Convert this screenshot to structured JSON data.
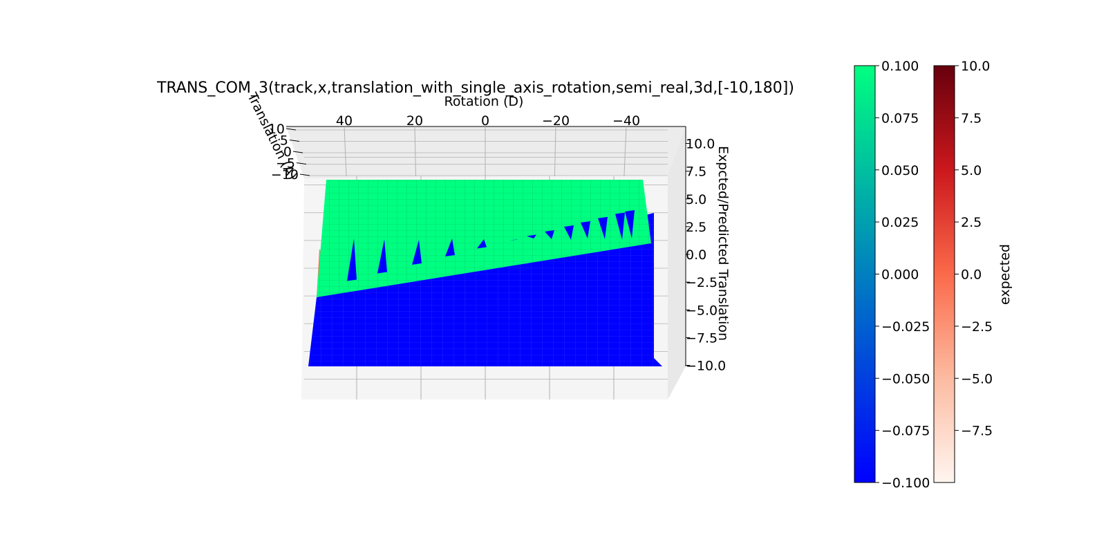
{
  "chart_data": {
    "type": "surface3d",
    "title": "TRANS_COM_3(track,x,translation_with_single_axis_rotation,semi_real,3d,[-10,180])",
    "x_axis": {
      "label": "Rotation (D)",
      "ticks": [
        "40",
        "20",
        "0",
        "−20",
        "−40"
      ],
      "range": [
        50,
        -50
      ]
    },
    "y_axis": {
      "label": "Translation (A)",
      "ticks": [
        "10",
        "5",
        "0",
        "−5",
        "−10"
      ],
      "range": [
        10,
        -10
      ]
    },
    "z_axis": {
      "label": "Expcted/Predicted Translation",
      "ticks": [
        "10.0",
        "7.5",
        "5.0",
        "2.5",
        "0.0",
        "−2.5",
        "−5.0",
        "−7.5",
        "−10.0"
      ],
      "range": [
        -10,
        10
      ]
    },
    "series": [
      {
        "name": "predicted",
        "surface": "piecewise plane: approximately +10 for positive translation, −10 for negative translation",
        "colormap": "winter"
      },
      {
        "name": "expected",
        "surface": "plane increasing with translation from −10 to 10",
        "colormap": "Reds"
      }
    ],
    "colorbars": [
      {
        "label": "predicted",
        "colormap": "winter",
        "min": -0.1,
        "max": 0.1,
        "ticks": [
          "0.100",
          "0.075",
          "0.050",
          "0.025",
          "0.000",
          "−0.025",
          "−0.050",
          "−0.075",
          "−0.100"
        ]
      },
      {
        "label": "expected",
        "colormap": "Reds",
        "min": -10,
        "max": 10,
        "ticks": [
          "10.0",
          "7.5",
          "5.0",
          "2.5",
          "0.0",
          "−2.5",
          "−5.0",
          "−7.5"
        ]
      }
    ],
    "colors": {
      "predicted_high": "#00ff80",
      "predicted_low": "#0000ff",
      "expected_visible": "#f4805f",
      "pane": "#f2f2f2",
      "grid": "#b0b0b0"
    },
    "grid": true,
    "legend": "colorbars-right"
  }
}
